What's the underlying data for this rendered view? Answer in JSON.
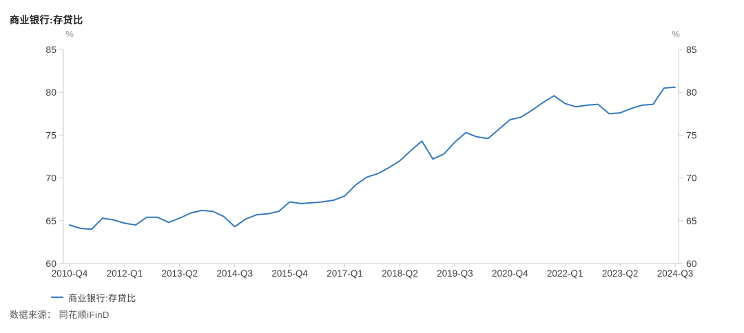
{
  "header": {
    "title": "商业银行:存贷比"
  },
  "legend": {
    "label": "商业银行:存贷比"
  },
  "footer": {
    "source": "数据来源： 同花顺iFinD"
  },
  "colors": {
    "line": "#3579bd",
    "axis": "#c9c9c9",
    "tick_label": "#404040",
    "unit_label": "#8c8c8c",
    "title": "#1a1a1a",
    "footer_text": "#595959",
    "background": "#ffffff"
  },
  "chart_data": {
    "type": "line",
    "title": "商业银行:存贷比",
    "series_name": "商业银行:存贷比",
    "unit_left": "%",
    "unit_right": "%",
    "ylim": [
      60,
      85
    ],
    "y_ticks": [
      85,
      80,
      75,
      70,
      65,
      60
    ],
    "grid": false,
    "legend_position": "bottom-left",
    "x_tick_label_every": 5,
    "x_tick_labels_shown": [
      "2010-Q4",
      "2012-Q1",
      "2013-Q2",
      "2014-Q3",
      "2015-Q4",
      "2017-Q1",
      "2018-Q2",
      "2019-Q3",
      "2020-Q4",
      "2022-Q1",
      "2023-Q2",
      "2024-Q3"
    ],
    "source": "数据来源： 同花顺iFinD",
    "categories": [
      "2010-Q4",
      "2011-Q1",
      "2011-Q2",
      "2011-Q3",
      "2011-Q4",
      "2012-Q1",
      "2012-Q2",
      "2012-Q3",
      "2012-Q4",
      "2013-Q1",
      "2013-Q2",
      "2013-Q3",
      "2013-Q4",
      "2014-Q1",
      "2014-Q2",
      "2014-Q3",
      "2014-Q4",
      "2015-Q1",
      "2015-Q2",
      "2015-Q3",
      "2015-Q4",
      "2016-Q1",
      "2016-Q2",
      "2016-Q3",
      "2016-Q4",
      "2017-Q1",
      "2017-Q2",
      "2017-Q3",
      "2017-Q4",
      "2018-Q1",
      "2018-Q2",
      "2018-Q3",
      "2018-Q4",
      "2019-Q1",
      "2019-Q2",
      "2019-Q3",
      "2019-Q4",
      "2020-Q1",
      "2020-Q2",
      "2020-Q3",
      "2020-Q4",
      "2021-Q1",
      "2021-Q2",
      "2021-Q3",
      "2021-Q4",
      "2022-Q1",
      "2022-Q2",
      "2022-Q3",
      "2022-Q4",
      "2023-Q1",
      "2023-Q2",
      "2023-Q3",
      "2023-Q4",
      "2024-Q1",
      "2024-Q2",
      "2024-Q3"
    ],
    "values": [
      64.5,
      64.1,
      64.0,
      65.3,
      65.1,
      64.7,
      64.5,
      65.4,
      65.4,
      64.8,
      65.3,
      65.9,
      66.2,
      66.1,
      65.5,
      64.3,
      65.2,
      65.7,
      65.8,
      66.1,
      67.2,
      67.0,
      67.1,
      67.2,
      67.4,
      67.9,
      69.2,
      70.1,
      70.5,
      71.2,
      72.0,
      73.2,
      74.3,
      72.2,
      72.8,
      74.2,
      75.3,
      74.8,
      74.6,
      75.7,
      76.8,
      77.1,
      77.9,
      78.8,
      79.6,
      78.7,
      78.3,
      78.5,
      78.6,
      77.5,
      77.6,
      78.1,
      78.5,
      78.6,
      80.5,
      80.6
    ]
  }
}
